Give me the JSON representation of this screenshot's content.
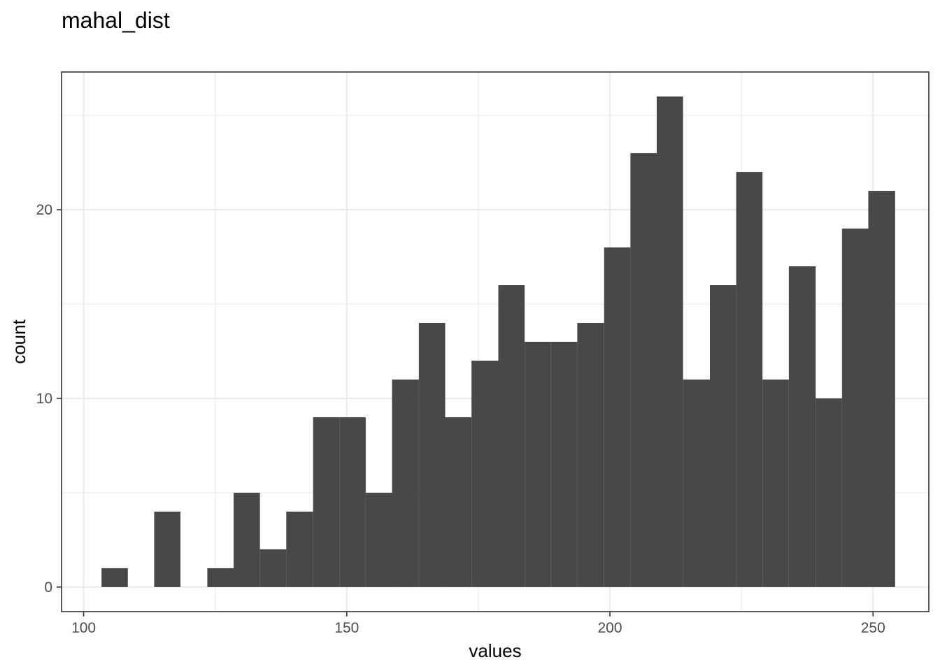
{
  "chart_data": {
    "type": "bar",
    "title": "mahal_dist",
    "xlabel": "values",
    "ylabel": "count",
    "xlim": [
      95.8,
      260.6
    ],
    "ylim": [
      -1.3,
      27.3
    ],
    "x_major_ticks": [
      100,
      150,
      200,
      250
    ],
    "x_minor_ticks": [
      125,
      175,
      225
    ],
    "y_major_ticks": [
      0,
      10,
      20
    ],
    "y_minor_ticks": [
      5,
      15,
      25
    ],
    "x_tick_labels": [
      "100",
      "150",
      "200",
      "250"
    ],
    "y_tick_labels": [
      "0",
      "10",
      "20"
    ],
    "grid": true,
    "bar_color": "#484848",
    "bins": [
      {
        "x0": 103.4,
        "x1": 108.4,
        "count": 1
      },
      {
        "x0": 108.4,
        "x1": 113.4,
        "count": 0
      },
      {
        "x0": 113.4,
        "x1": 118.4,
        "count": 4
      },
      {
        "x0": 118.4,
        "x1": 123.5,
        "count": 0
      },
      {
        "x0": 123.5,
        "x1": 128.5,
        "count": 1
      },
      {
        "x0": 128.5,
        "x1": 133.5,
        "count": 5
      },
      {
        "x0": 133.5,
        "x1": 138.5,
        "count": 2
      },
      {
        "x0": 138.5,
        "x1": 143.6,
        "count": 4
      },
      {
        "x0": 143.6,
        "x1": 148.6,
        "count": 9
      },
      {
        "x0": 148.6,
        "x1": 153.6,
        "count": 9
      },
      {
        "x0": 153.6,
        "x1": 158.6,
        "count": 5
      },
      {
        "x0": 158.6,
        "x1": 163.7,
        "count": 11
      },
      {
        "x0": 163.7,
        "x1": 168.7,
        "count": 14
      },
      {
        "x0": 168.7,
        "x1": 173.7,
        "count": 9
      },
      {
        "x0": 173.7,
        "x1": 178.8,
        "count": 12
      },
      {
        "x0": 178.8,
        "x1": 183.8,
        "count": 16
      },
      {
        "x0": 183.8,
        "x1": 188.8,
        "count": 13
      },
      {
        "x0": 188.8,
        "x1": 193.8,
        "count": 13
      },
      {
        "x0": 193.8,
        "x1": 198.9,
        "count": 14
      },
      {
        "x0": 198.9,
        "x1": 203.9,
        "count": 18
      },
      {
        "x0": 203.9,
        "x1": 208.9,
        "count": 23
      },
      {
        "x0": 208.9,
        "x1": 213.9,
        "count": 26
      },
      {
        "x0": 213.9,
        "x1": 219.0,
        "count": 11
      },
      {
        "x0": 219.0,
        "x1": 224.0,
        "count": 16
      },
      {
        "x0": 224.0,
        "x1": 229.0,
        "count": 22
      },
      {
        "x0": 229.0,
        "x1": 234.0,
        "count": 11
      },
      {
        "x0": 234.0,
        "x1": 239.1,
        "count": 17
      },
      {
        "x0": 239.1,
        "x1": 244.1,
        "count": 10
      },
      {
        "x0": 244.1,
        "x1": 249.1,
        "count": 19
      },
      {
        "x0": 249.1,
        "x1": 254.2,
        "count": 21
      }
    ]
  }
}
